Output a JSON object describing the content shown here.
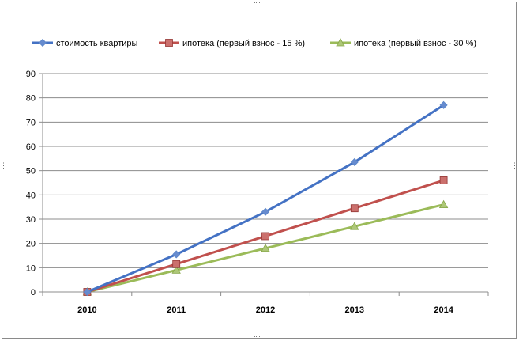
{
  "chart_data": {
    "type": "line",
    "categories": [
      "2010",
      "2011",
      "2012",
      "2013",
      "2014"
    ],
    "series": [
      {
        "name": "стоимость квартиры",
        "values": [
          0,
          15.5,
          33,
          53.5,
          77
        ],
        "color": "#4472c4",
        "marker": "diamond"
      },
      {
        "name": "ипотека (первый взнос - 15 %)",
        "values": [
          0,
          11.5,
          23,
          34.5,
          46
        ],
        "color": "#c0504d",
        "marker": "square"
      },
      {
        "name": "ипотека (первый взнос - 30 %)",
        "values": [
          0,
          9,
          18,
          27,
          36
        ],
        "color": "#9bbb59",
        "marker": "triangle"
      }
    ],
    "yticks": [
      "0",
      "10",
      "20",
      "30",
      "40",
      "50",
      "60",
      "70",
      "80",
      "90"
    ],
    "ylim": [
      0,
      90
    ],
    "grid": true,
    "legend": "top",
    "title": "",
    "xlabel": "",
    "ylabel": ""
  }
}
